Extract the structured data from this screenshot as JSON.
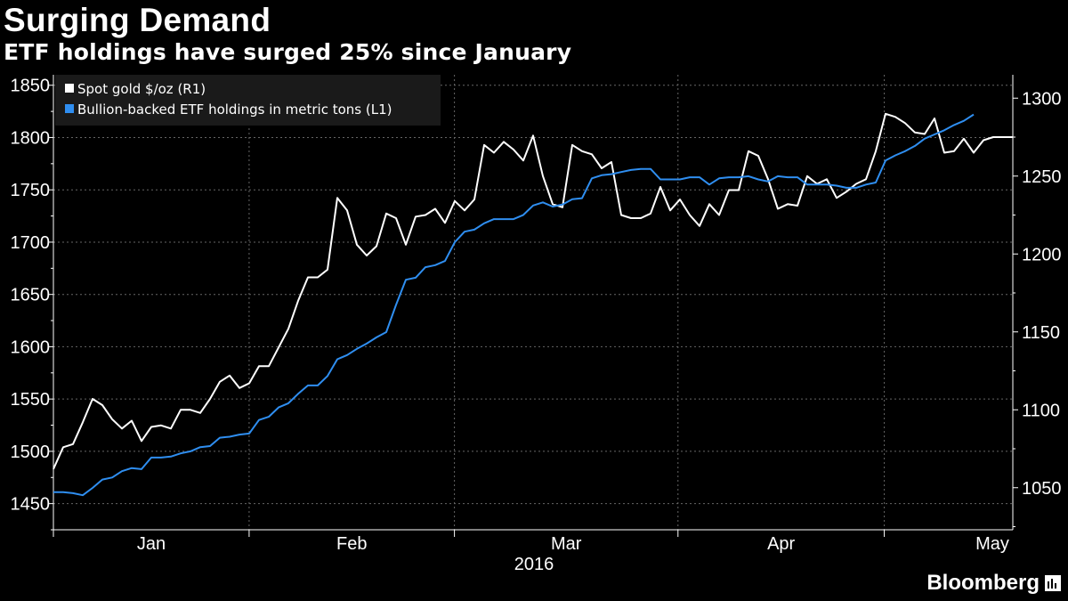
{
  "title": "Surging Demand",
  "subtitle": "ETF holdings have surged 25% since January",
  "brand": "Bloomberg",
  "chart_data": {
    "type": "line",
    "title": "Surging Demand",
    "subtitle": "ETF holdings have surged 25% since January",
    "xlabel": "2016",
    "x_tick_labels": [
      "Jan",
      "Feb",
      "Mar",
      "Apr",
      "May"
    ],
    "year_label": "2016",
    "legend_position": "top-left",
    "grid": true,
    "left_axis": {
      "ylim": [
        1425,
        1860
      ],
      "ticks": [
        1450,
        1500,
        1550,
        1600,
        1650,
        1700,
        1750,
        1800,
        1850
      ]
    },
    "right_axis": {
      "ylim": [
        1023,
        1315
      ],
      "ticks": [
        1050,
        1100,
        1150,
        1200,
        1250,
        1300
      ]
    },
    "series": [
      {
        "name": "Spot gold $/oz (R1)",
        "axis": "right",
        "color": "#ffffff",
        "values": [
          1062,
          1076,
          1078,
          1092,
          1107,
          1103,
          1094,
          1088,
          1093,
          1080,
          1089,
          1090,
          1088,
          1100,
          1100,
          1098,
          1107,
          1118,
          1122,
          1114,
          1117,
          1128,
          1128,
          1140,
          1152,
          1170,
          1185,
          1185,
          1190,
          1236,
          1228,
          1206,
          1199,
          1205,
          1226,
          1223,
          1206,
          1224,
          1225,
          1229,
          1220,
          1234,
          1228,
          1235,
          1270,
          1265,
          1272,
          1267,
          1260,
          1276,
          1250,
          1232,
          1230,
          1270,
          1266,
          1264,
          1255,
          1259,
          1225,
          1223,
          1223,
          1226,
          1243,
          1228,
          1235,
          1225,
          1218,
          1232,
          1225,
          1241,
          1241,
          1266,
          1263,
          1248,
          1229,
          1232,
          1231,
          1250,
          1245,
          1248,
          1236,
          1240,
          1245,
          1248,
          1266,
          1290,
          1288,
          1284,
          1278,
          1277,
          1287,
          1265,
          1266,
          1274,
          1265,
          1273,
          1275,
          1275,
          1275
        ]
      },
      {
        "name": "Bullion-backed ETF holdings in metric tons (L1)",
        "axis": "left",
        "color": "#2f8ef0",
        "values": [
          1461,
          1461,
          1460,
          1458,
          1465,
          1473,
          1475,
          1481,
          1484,
          1483,
          1494,
          1494,
          1495,
          1498,
          1500,
          1504,
          1505,
          1513,
          1514,
          1516,
          1517,
          1530,
          1533,
          1542,
          1546,
          1555,
          1563,
          1563,
          1572,
          1588,
          1592,
          1598,
          1603,
          1609,
          1614,
          1640,
          1664,
          1666,
          1676,
          1678,
          1682,
          1700,
          1710,
          1712,
          1718,
          1722,
          1722,
          1722,
          1726,
          1735,
          1738,
          1734,
          1736,
          1741,
          1742,
          1761,
          1764,
          1765,
          1767,
          1769,
          1770,
          1770,
          1760,
          1760,
          1760,
          1762,
          1762,
          1755,
          1761,
          1762,
          1762,
          1763,
          1760,
          1758,
          1763,
          1762,
          1762,
          1755,
          1755,
          1755,
          1754,
          1752,
          1752,
          1755,
          1757,
          1778,
          1783,
          1787,
          1792,
          1799,
          1803,
          1807,
          1812,
          1816,
          1822
        ]
      }
    ]
  }
}
